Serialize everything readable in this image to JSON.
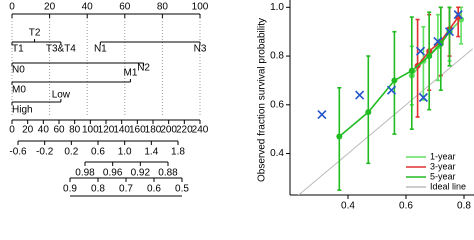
{
  "chart_data": [
    {
      "type": "nomogram",
      "points_axis": {
        "lim": [
          0,
          100
        ],
        "ticks": [
          0,
          20,
          40,
          60,
          80,
          100
        ]
      },
      "variables": [
        {
          "levels": [
            {
              "label": "T1",
              "points": 0
            },
            {
              "label": "T2",
              "points": 12
            },
            {
              "label": "T3&T4",
              "points": 26
            }
          ]
        },
        {
          "levels": [
            {
              "label": "N1",
              "points": 47
            },
            {
              "label": "N3",
              "points": 100
            }
          ]
        },
        {
          "levels": [
            {
              "label": "N0",
              "points": 0
            },
            {
              "label": "N2",
              "points": 70
            }
          ]
        },
        {
          "levels": [
            {
              "label": "M0",
              "points": 0
            },
            {
              "label": "M1",
              "points": 63
            }
          ]
        },
        {
          "levels": [
            {
              "label": "High",
              "points": 0
            },
            {
              "label": "Low",
              "points": 26
            }
          ]
        }
      ],
      "total_points_axis": {
        "lim": [
          0,
          240
        ],
        "ticks": [
          0,
          20,
          40,
          60,
          80,
          100,
          120,
          140,
          160,
          180,
          200,
          220,
          240
        ]
      },
      "scales": [
        {
          "ticks": [
            -0.6,
            -0.2,
            0.2,
            0.6,
            {
              "value": 1,
              "label": "1.0"
            },
            1.4,
            1.8
          ]
        },
        {
          "ticks": [
            0.98,
            0.96,
            0.92,
            0.88
          ]
        },
        {
          "ticks": [
            0.9,
            0.8,
            0.7,
            0.6,
            0.5
          ]
        }
      ]
    },
    {
      "type": "calibration",
      "y_label": "Observed fraction survival probability",
      "xlim": [
        0.2,
        0.83
      ],
      "ylim": [
        0.23,
        1.03
      ],
      "xticks": [
        0.4,
        0.6,
        0.8
      ],
      "yticks": [
        0.4,
        0.6,
        0.8,
        {
          "value": 1,
          "label": "1.0"
        }
      ],
      "legend": "lower right",
      "series": [
        {
          "name": "1-year",
          "color": "#5ee05e",
          "x": [
            0.62,
            0.66,
            0.71,
            0.75,
            0.79
          ],
          "values": [
            0.72,
            0.78,
            0.84,
            0.9,
            0.95
          ],
          "lower": [
            0.6,
            0.62,
            0.7,
            0.78,
            0.85
          ],
          "upper": [
            0.84,
            0.92,
            0.97,
            1.0,
            1.0
          ]
        },
        {
          "name": "3-year",
          "color": "#e03030",
          "x": [
            0.64,
            0.68,
            0.72,
            0.75,
            0.78
          ],
          "values": [
            0.76,
            0.82,
            0.86,
            0.91,
            0.96
          ],
          "lower": [
            0.55,
            0.66,
            0.72,
            0.8,
            0.88
          ],
          "upper": [
            0.95,
            0.97,
            1.0,
            1.0,
            1.0
          ]
        },
        {
          "name": "5-year",
          "color": "#22bb22",
          "x": [
            0.37,
            0.47,
            0.56,
            0.62,
            0.68,
            0.72,
            0.75
          ],
          "values": [
            0.47,
            0.57,
            0.7,
            0.74,
            0.8,
            0.85,
            0.9
          ],
          "lower": [
            0.25,
            0.36,
            0.48,
            0.5,
            0.58,
            0.66,
            0.76
          ],
          "upper": [
            0.67,
            0.8,
            0.9,
            0.96,
            0.98,
            1.0,
            1.0
          ]
        }
      ],
      "markers": {
        "color": "#2255cc",
        "x": [
          0.31,
          0.44,
          0.55,
          0.65,
          0.66,
          0.71,
          0.75,
          0.78
        ],
        "values": [
          0.56,
          0.64,
          0.66,
          0.82,
          0.63,
          0.86,
          0.9,
          0.97
        ]
      },
      "reference": {
        "name": "Ideal line",
        "color": "#bbbbbb"
      }
    }
  ]
}
